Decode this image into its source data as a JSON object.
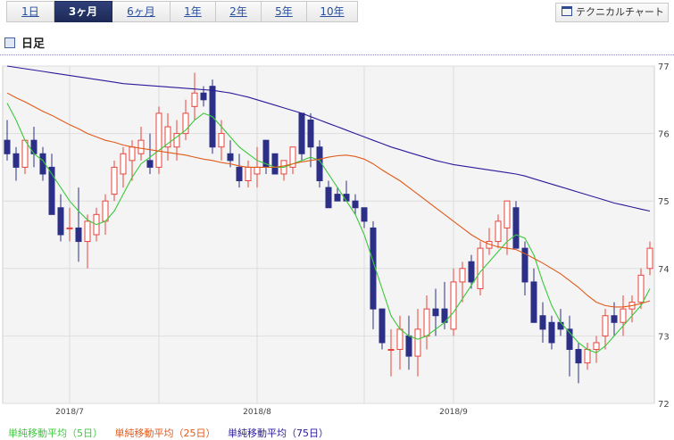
{
  "tabs": [
    {
      "label": "1日",
      "active": false
    },
    {
      "label": "3ヶ月",
      "active": true
    },
    {
      "label": "6ヶ月",
      "active": false
    },
    {
      "label": "1年",
      "active": false
    },
    {
      "label": "2年",
      "active": false
    },
    {
      "label": "5年",
      "active": false
    },
    {
      "label": "10年",
      "active": false
    }
  ],
  "tech_button_label": "テクニカルチャート",
  "section_title": "日足",
  "legend": {
    "ma5": "単純移動平均（5日）",
    "ma25": "単純移動平均（25日）",
    "ma75": "単純移動平均（75日）"
  },
  "colors": {
    "up": "#e8453c",
    "down": "#2b2f86",
    "ma5": "#3cc83c",
    "ma25": "#e05a1a",
    "ma75": "#2a1a9a",
    "plot_bg": "#f4f4f4",
    "grid": "#dddddd"
  },
  "chart_data": {
    "type": "candlestick",
    "ylim": [
      72,
      77
    ],
    "yticks": [
      72,
      73,
      74,
      75,
      76,
      77
    ],
    "x_ticks": [
      {
        "index": 7,
        "label": "2018/7"
      },
      {
        "index": 28,
        "label": "2018/8"
      },
      {
        "index": 50,
        "label": "2018/9"
      }
    ],
    "minor_gridlines": [
      17,
      40
    ],
    "candles": [
      [
        75.9,
        76.2,
        75.6,
        75.7
      ],
      [
        75.7,
        75.8,
        75.3,
        75.5
      ],
      [
        75.5,
        75.9,
        75.4,
        75.9
      ],
      [
        75.9,
        76.1,
        75.5,
        75.7
      ],
      [
        75.7,
        75.8,
        75.3,
        75.4
      ],
      [
        75.5,
        75.7,
        74.8,
        74.8
      ],
      [
        74.9,
        75.1,
        74.4,
        74.5
      ],
      [
        74.6,
        74.9,
        74.4,
        74.6
      ],
      [
        74.6,
        75.2,
        74.1,
        74.4
      ],
      [
        74.4,
        74.8,
        74.0,
        74.7
      ],
      [
        74.5,
        74.9,
        74.4,
        74.8
      ],
      [
        74.7,
        75.1,
        74.5,
        75.0
      ],
      [
        75.1,
        75.6,
        75.0,
        75.5
      ],
      [
        75.4,
        75.8,
        75.2,
        75.7
      ],
      [
        75.6,
        75.9,
        75.3,
        75.8
      ],
      [
        75.7,
        76.1,
        75.6,
        75.9
      ],
      [
        75.6,
        76.0,
        75.4,
        75.5
      ],
      [
        75.5,
        76.4,
        75.4,
        76.3
      ],
      [
        75.8,
        76.3,
        75.6,
        76.1
      ],
      [
        75.8,
        76.2,
        75.6,
        76.0
      ],
      [
        76.0,
        76.5,
        75.9,
        76.3
      ],
      [
        76.4,
        76.9,
        76.2,
        76.6
      ],
      [
        76.6,
        76.7,
        76.4,
        76.5
      ],
      [
        76.7,
        76.8,
        75.7,
        75.8
      ],
      [
        75.8,
        76.2,
        75.6,
        76.0
      ],
      [
        75.7,
        75.9,
        75.5,
        75.6
      ],
      [
        75.5,
        75.7,
        75.2,
        75.3
      ],
      [
        75.3,
        75.6,
        75.2,
        75.5
      ],
      [
        75.4,
        75.8,
        75.2,
        75.5
      ],
      [
        75.9,
        75.9,
        75.4,
        75.5
      ],
      [
        75.7,
        75.7,
        75.4,
        75.4
      ],
      [
        75.4,
        75.6,
        75.3,
        75.6
      ],
      [
        75.5,
        75.8,
        75.4,
        75.8
      ],
      [
        76.3,
        76.3,
        75.6,
        75.7
      ],
      [
        76.2,
        76.3,
        75.5,
        75.8
      ],
      [
        75.8,
        75.9,
        75.2,
        75.3
      ],
      [
        75.2,
        75.3,
        74.9,
        74.9
      ],
      [
        75.1,
        75.2,
        75.0,
        75.0
      ],
      [
        75.1,
        75.3,
        75.0,
        75.0
      ],
      [
        75.0,
        75.1,
        74.8,
        74.9
      ],
      [
        74.9,
        74.9,
        74.6,
        74.7
      ],
      [
        74.6,
        74.7,
        73.1,
        73.4
      ],
      [
        73.4,
        73.4,
        72.8,
        72.9
      ],
      [
        72.8,
        73.1,
        72.4,
        72.8
      ],
      [
        72.8,
        73.3,
        72.5,
        73.1
      ],
      [
        73.0,
        73.3,
        72.5,
        72.7
      ],
      [
        72.7,
        73.4,
        72.4,
        73.1
      ],
      [
        73.0,
        73.6,
        72.8,
        73.4
      ],
      [
        73.4,
        73.7,
        73.0,
        73.3
      ],
      [
        73.4,
        73.8,
        73.1,
        73.2
      ],
      [
        73.1,
        74.0,
        73.0,
        73.8
      ],
      [
        73.8,
        74.1,
        73.5,
        74.0
      ],
      [
        74.1,
        74.2,
        73.7,
        73.8
      ],
      [
        73.7,
        74.4,
        73.6,
        74.3
      ],
      [
        74.3,
        74.6,
        74.2,
        74.4
      ],
      [
        74.4,
        74.8,
        74.3,
        74.7
      ],
      [
        74.6,
        75.0,
        74.2,
        75.0
      ],
      [
        74.9,
        75.0,
        74.3,
        74.3
      ],
      [
        74.3,
        74.4,
        73.6,
        73.8
      ],
      [
        73.8,
        74.0,
        73.2,
        73.2
      ],
      [
        73.3,
        73.5,
        72.9,
        73.1
      ],
      [
        73.2,
        73.3,
        72.8,
        72.9
      ],
      [
        73.2,
        73.4,
        73.0,
        73.1
      ],
      [
        73.1,
        73.3,
        72.4,
        72.8
      ],
      [
        72.8,
        72.9,
        72.3,
        72.6
      ],
      [
        72.6,
        72.9,
        72.5,
        72.8
      ],
      [
        72.8,
        73.0,
        72.6,
        72.9
      ],
      [
        73.0,
        73.4,
        72.8,
        73.3
      ],
      [
        73.3,
        73.5,
        73.0,
        73.2
      ],
      [
        73.2,
        73.6,
        73.0,
        73.4
      ],
      [
        73.4,
        73.6,
        73.2,
        73.5
      ],
      [
        73.5,
        74.0,
        73.4,
        73.9
      ],
      [
        74.0,
        74.4,
        73.9,
        74.3
      ]
    ],
    "series": [
      {
        "name": "単純移動平均（5日）",
        "values": [
          76.45,
          76.2,
          75.9,
          75.7,
          75.6,
          75.4,
          75.2,
          75.0,
          74.85,
          74.72,
          74.65,
          74.7,
          74.85,
          75.1,
          75.35,
          75.55,
          75.65,
          75.75,
          75.85,
          75.95,
          76.05,
          76.2,
          76.3,
          76.25,
          76.1,
          75.95,
          75.8,
          75.7,
          75.6,
          75.55,
          75.5,
          75.5,
          75.55,
          75.6,
          75.65,
          75.6,
          75.4,
          75.2,
          75.0,
          74.8,
          74.5,
          74.1,
          73.7,
          73.3,
          73.1,
          73.0,
          72.95,
          73.0,
          73.1,
          73.2,
          73.35,
          73.55,
          73.75,
          73.95,
          74.1,
          74.25,
          74.4,
          74.5,
          74.45,
          74.2,
          73.8,
          73.45,
          73.2,
          73.05,
          72.9,
          72.8,
          72.75,
          72.85,
          73.0,
          73.15,
          73.3,
          73.45,
          73.7
        ]
      },
      {
        "name": "単純移動平均（25日）",
        "values": [
          76.6,
          76.53,
          76.47,
          76.4,
          76.33,
          76.27,
          76.2,
          76.13,
          76.07,
          76.0,
          75.95,
          75.9,
          75.87,
          75.83,
          75.8,
          75.78,
          75.76,
          75.74,
          75.72,
          75.7,
          75.68,
          75.65,
          75.62,
          75.6,
          75.57,
          75.55,
          75.52,
          75.5,
          75.5,
          75.5,
          75.5,
          75.52,
          75.55,
          75.58,
          75.6,
          75.62,
          75.65,
          75.67,
          75.68,
          75.66,
          75.62,
          75.55,
          75.46,
          75.38,
          75.3,
          75.2,
          75.1,
          75.0,
          74.9,
          74.8,
          74.7,
          74.6,
          74.5,
          74.42,
          74.36,
          74.32,
          74.3,
          74.28,
          74.22,
          74.15,
          74.08,
          74.0,
          73.92,
          73.82,
          73.72,
          73.6,
          73.5,
          73.45,
          73.43,
          73.43,
          73.45,
          73.48,
          73.52
        ]
      },
      {
        "name": "単純移動平均（75日）",
        "values": [
          77.0,
          76.98,
          76.96,
          76.94,
          76.92,
          76.9,
          76.88,
          76.86,
          76.84,
          76.82,
          76.8,
          76.78,
          76.76,
          76.74,
          76.73,
          76.72,
          76.71,
          76.7,
          76.69,
          76.68,
          76.67,
          76.66,
          76.65,
          76.64,
          76.62,
          76.6,
          76.57,
          76.54,
          76.5,
          76.46,
          76.42,
          76.38,
          76.34,
          76.3,
          76.25,
          76.2,
          76.15,
          76.1,
          76.05,
          76.0,
          75.95,
          75.9,
          75.85,
          75.8,
          75.76,
          75.72,
          75.68,
          75.64,
          75.6,
          75.57,
          75.54,
          75.52,
          75.5,
          75.48,
          75.46,
          75.44,
          75.42,
          75.4,
          75.37,
          75.33,
          75.29,
          75.25,
          75.21,
          75.17,
          75.13,
          75.09,
          75.05,
          75.01,
          74.97,
          74.94,
          74.91,
          74.88,
          74.85
        ]
      }
    ]
  }
}
